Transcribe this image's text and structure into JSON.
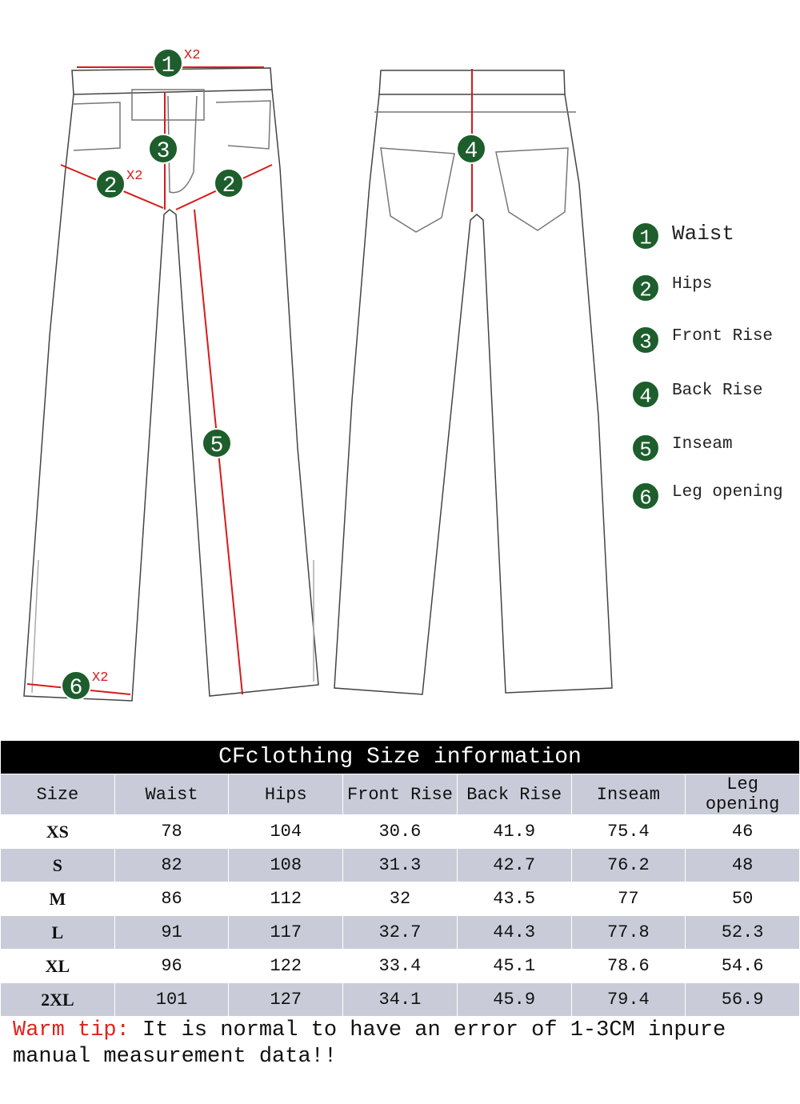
{
  "diagram": {
    "markers": [
      {
        "num": "1",
        "note": "X2"
      },
      {
        "num": "2",
        "note": "X2"
      },
      {
        "num": "2"
      },
      {
        "num": "3"
      },
      {
        "num": "4"
      },
      {
        "num": "5"
      },
      {
        "num": "6",
        "note": "X2"
      }
    ],
    "legend": [
      {
        "num": "1",
        "label": "Waist"
      },
      {
        "num": "2",
        "label": "Hips"
      },
      {
        "num": "3",
        "label": "Front Rise"
      },
      {
        "num": "4",
        "label": "Back Rise"
      },
      {
        "num": "5",
        "label": "Inseam"
      },
      {
        "num": "6",
        "label": "Leg opening"
      }
    ]
  },
  "table": {
    "title": "CFclothing Size information",
    "header": [
      "Size",
      "Waist",
      "Hips",
      "Front Rise",
      "Back Rise",
      "Inseam",
      "Leg opening"
    ],
    "rows": [
      [
        "XS",
        "78",
        "104",
        "30.6",
        "41.9",
        "75.4",
        "46"
      ],
      [
        "S",
        "82",
        "108",
        "31.3",
        "42.7",
        "76.2",
        "48"
      ],
      [
        "M",
        "86",
        "112",
        "32",
        "43.5",
        "77",
        "50"
      ],
      [
        "L",
        "91",
        "117",
        "32.7",
        "44.3",
        "77.8",
        "52.3"
      ],
      [
        "XL",
        "96",
        "122",
        "33.4",
        "45.1",
        "78.6",
        "54.6"
      ],
      [
        "2XL",
        "101",
        "127",
        "34.1",
        "45.9",
        "79.4",
        "56.9"
      ]
    ]
  },
  "tip": {
    "label": "Warm tip:",
    "text": "It is normal to have an error of 1-3CM inpure manual measurement data!!"
  }
}
